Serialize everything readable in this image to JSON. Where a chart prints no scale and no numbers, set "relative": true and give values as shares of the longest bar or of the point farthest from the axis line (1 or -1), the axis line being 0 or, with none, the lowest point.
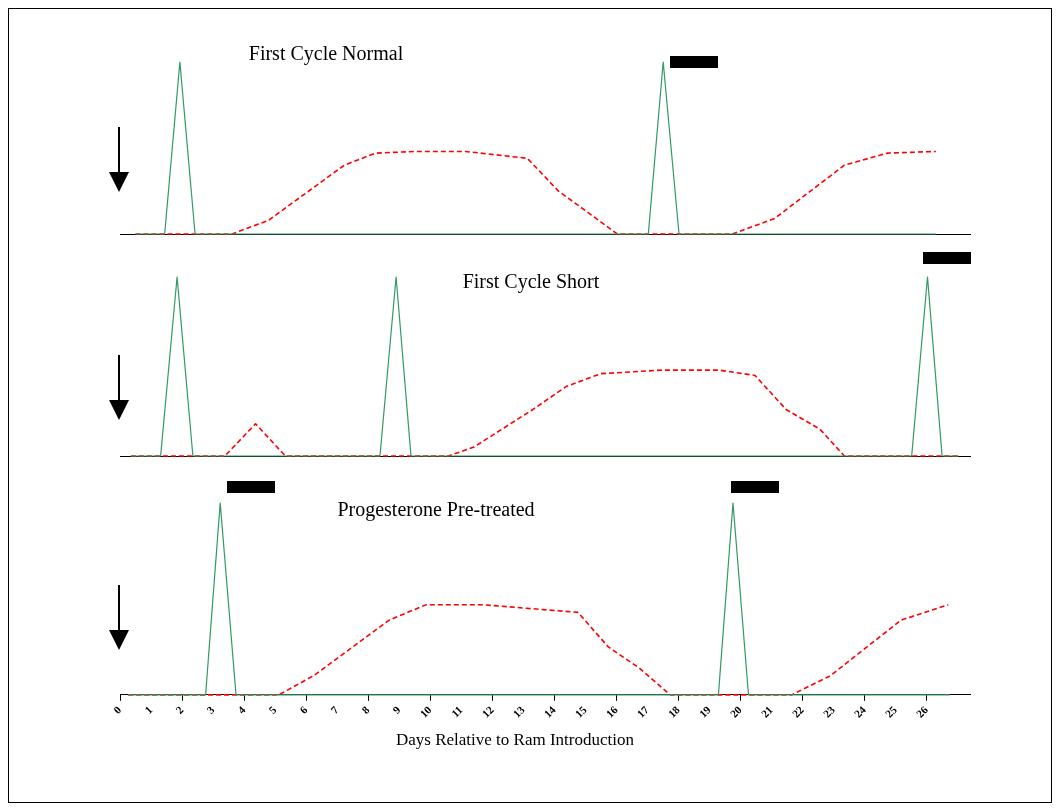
{
  "chart_data": [
    {
      "type": "line",
      "title": "First Cycle Normal",
      "relative": true,
      "xlim": [
        0,
        27.4
      ],
      "tick_labels": false,
      "legend": false,
      "grid": false,
      "series": [
        {
          "color": "#339966",
          "line_style": "solid",
          "x": [
            0.5,
            1.44,
            1.93,
            2.42,
            17.03,
            17.51,
            18.02,
            26.3
          ],
          "values": [
            0,
            0,
            1,
            0,
            0,
            1,
            0,
            0
          ]
        },
        {
          "color": "#ff0000",
          "line_style": "dashed",
          "x": [
            0.5,
            3.61,
            4.79,
            7.23,
            8.23,
            9.5,
            11.13,
            13.13,
            14.13,
            15.2,
            16.03,
            19.74,
            21.1,
            23.35,
            24.73,
            26.3
          ],
          "values": [
            0,
            0,
            0.08,
            0.4,
            0.47,
            0.48,
            0.48,
            0.44,
            0.25,
            0.11,
            0,
            0,
            0.09,
            0.4,
            0.47,
            0.48
          ]
        }
      ]
    },
    {
      "type": "line",
      "title": "First Cycle Short",
      "relative": true,
      "xlim": [
        0,
        27.4
      ],
      "tick_labels": false,
      "legend": false,
      "grid": false,
      "series": [
        {
          "color": "#339966",
          "line_style": "solid",
          "x": [
            0.35,
            1.31,
            1.84,
            2.35,
            8.38,
            8.9,
            9.38,
            25.52,
            26.03,
            26.5,
            27.04
          ],
          "values": [
            0,
            0,
            1,
            0,
            0,
            1,
            0,
            0,
            1,
            0,
            0
          ]
        },
        {
          "color": "#ff0000",
          "line_style": "dashed",
          "x": [
            0.35,
            3.38,
            4.37,
            5.33,
            10.59,
            11.41,
            13.31,
            14.4,
            15.5,
            17.48,
            19.3,
            20.47,
            21.47,
            22.56,
            23.35,
            25.45,
            27.04
          ],
          "values": [
            0,
            0,
            0.18,
            0,
            0,
            0.05,
            0.26,
            0.39,
            0.46,
            0.48,
            0.48,
            0.45,
            0.26,
            0.15,
            0,
            0,
            0
          ]
        }
      ]
    },
    {
      "type": "line",
      "title": "Progesterone Pre-treated",
      "xlabel": "Days Relative to Ram Introduction",
      "relative": true,
      "xlim": [
        0,
        27.4
      ],
      "xticks": [
        0,
        1,
        2,
        3,
        4,
        5,
        6,
        7,
        8,
        9,
        10,
        11,
        12,
        13,
        14,
        15,
        16,
        17,
        18,
        19,
        20,
        21,
        22,
        23,
        24,
        25,
        26
      ],
      "tick_labels": "x",
      "legend": false,
      "grid": false,
      "series": [
        {
          "color": "#339966",
          "line_style": "solid",
          "x": [
            0.26,
            2.76,
            3.23,
            3.74,
            19.29,
            19.76,
            20.26,
            26.75
          ],
          "values": [
            0,
            0,
            1,
            0,
            0,
            1,
            0,
            0
          ]
        },
        {
          "color": "#ff0000",
          "line_style": "dashed",
          "x": [
            0.26,
            5.12,
            6.24,
            8.68,
            9.87,
            11.68,
            14.76,
            15.74,
            16.74,
            17.74,
            21.65,
            22.9,
            25.18,
            26.7
          ],
          "values": [
            0,
            0,
            0.1,
            0.39,
            0.47,
            0.47,
            0.43,
            0.25,
            0.14,
            0,
            0,
            0.1,
            0.39,
            0.47
          ]
        }
      ]
    }
  ]
}
